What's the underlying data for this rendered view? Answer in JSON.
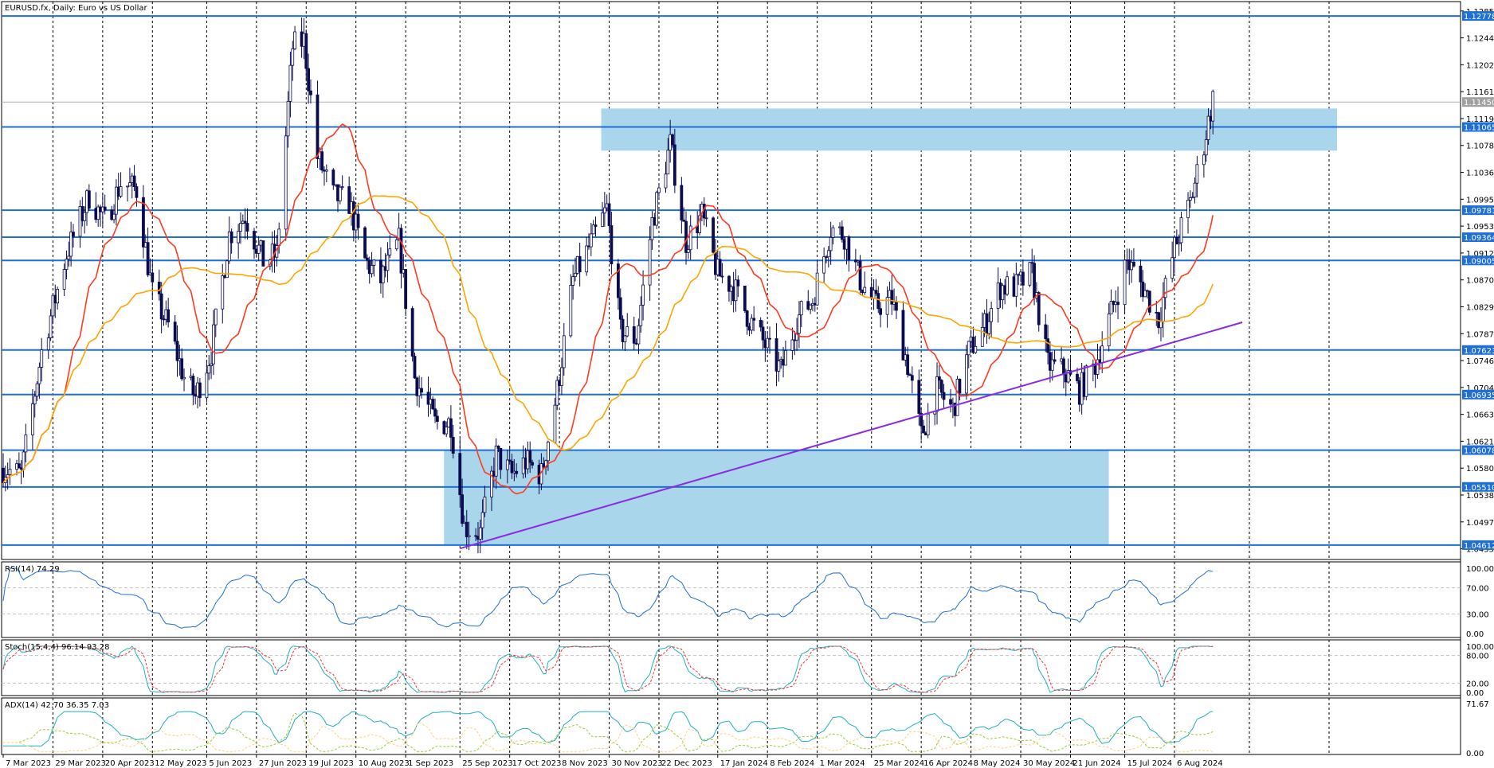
{
  "window": {
    "symbol_line": "EURUSD.fx, Daily:  Euro vs US Dollar"
  },
  "colors": {
    "candle_up": "#ffffff",
    "candle_down": "#0a0a50",
    "level_line": "#1e6fd9",
    "zone_fill": "#a9d6ea",
    "trendline": "#8a2be2",
    "ma_fast": "#ff3b1f",
    "ma_slow": "#ffa500",
    "rsi_line": "#1e6fd9",
    "stoch_main": "#20b0c0",
    "stoch_signal": "#ff3030",
    "adx_main": "#20b0c0",
    "adx_plus": "#9acd32",
    "adx_minus": "#ffd27f",
    "current_price_tag": "#a0a0a0"
  },
  "chart_data": [
    {
      "type": "candlestick",
      "title": "EURUSD.fx, Daily:  Euro vs US Dollar",
      "x_labels": [
        "7 Mar 2023",
        "29 Mar 2023",
        "20 Apr 2023",
        "12 May 2023",
        "5 Jun 2023",
        "27 Jun 2023",
        "19 Jul 2023",
        "10 Aug 2023",
        "1 Sep 2023",
        "25 Sep 2023",
        "17 Oct 2023",
        "8 Nov 2023",
        "30 Nov 2023",
        "22 Dec 2023",
        "17 Jan 2024",
        "8 Feb 2024",
        "1 Mar 2024",
        "25 Mar 2024",
        "16 Apr 2024",
        "8 May 2024",
        "30 May 2024",
        "21 Jun 2024",
        "15 Jul 2024",
        "6 Aug 2024"
      ],
      "y_ticks": [
        "1.12855",
        "1.12440",
        "1.12025",
        "1.11610",
        "1.11195",
        "1.10780",
        "1.10365",
        "1.09950",
        "1.09535",
        "1.09120",
        "1.08705",
        "1.08290",
        "1.07875",
        "1.07460",
        "1.07045",
        "1.06630",
        "1.06215",
        "1.05800",
        "1.05385",
        "1.04970",
        "1.04555"
      ],
      "ylim": [
        1.0439,
        1.13
      ],
      "levels": [
        "1.12778",
        "1.11065",
        "1.09781",
        "1.09364",
        "1.09005",
        "1.07623",
        "1.06935",
        "1.06078",
        "1.05510",
        "1.04612"
      ],
      "current_price": "1.11450",
      "resistance_zone": {
        "start": "30 Nov 2023",
        "end_offset_days": 15,
        "low": 1.107,
        "high": 1.1135
      },
      "support_zone": {
        "start": "25 Sep 2023",
        "end": "15 Jul 2024",
        "low": 1.0461,
        "high": 1.0608
      },
      "trendline": {
        "start_date": "25 Sep 2023",
        "start_price": 1.0456,
        "end_date": "5 Sep 2024",
        "end_price": 1.0805
      },
      "ohlc_close_path": [
        [
          "2023-03-07",
          1.058
        ],
        [
          "2023-03-15",
          1.057
        ],
        [
          "2023-03-24",
          1.076
        ],
        [
          "2023-04-04",
          1.091
        ],
        [
          "2023-04-14",
          1.1
        ],
        [
          "2023-04-21",
          1.096
        ],
        [
          "2023-04-28",
          1.102
        ],
        [
          "2023-05-05",
          1.101
        ],
        [
          "2023-05-12",
          1.085
        ],
        [
          "2023-05-19",
          1.08
        ],
        [
          "2023-05-26",
          1.072
        ],
        [
          "2023-05-31",
          1.069
        ],
        [
          "2023-06-07",
          1.076
        ],
        [
          "2023-06-15",
          1.094
        ],
        [
          "2023-06-22",
          1.097
        ],
        [
          "2023-06-30",
          1.09
        ],
        [
          "2023-07-06",
          1.091
        ],
        [
          "2023-07-13",
          1.123
        ],
        [
          "2023-07-18",
          1.124
        ],
        [
          "2023-07-24",
          1.106
        ],
        [
          "2023-07-31",
          1.1
        ],
        [
          "2023-08-07",
          1.099
        ],
        [
          "2023-08-14",
          1.09
        ],
        [
          "2023-08-21",
          1.087
        ],
        [
          "2023-08-29",
          1.093
        ],
        [
          "2023-09-05",
          1.072
        ],
        [
          "2023-09-14",
          1.065
        ],
        [
          "2023-09-21",
          1.065
        ],
        [
          "2023-09-27",
          1.049
        ],
        [
          "2023-10-04",
          1.048
        ],
        [
          "2023-10-11",
          1.06
        ],
        [
          "2023-10-18",
          1.057
        ],
        [
          "2023-10-24",
          1.059
        ],
        [
          "2023-10-31",
          1.057
        ],
        [
          "2023-11-07",
          1.07
        ],
        [
          "2023-11-14",
          1.087
        ],
        [
          "2023-11-21",
          1.092
        ],
        [
          "2023-11-29",
          1.098
        ],
        [
          "2023-12-05",
          1.079
        ],
        [
          "2023-12-12",
          1.078
        ],
        [
          "2023-12-19",
          1.096
        ],
        [
          "2023-12-27",
          1.108
        ],
        [
          "2024-01-03",
          1.093
        ],
        [
          "2024-01-10",
          1.097
        ],
        [
          "2024-01-17",
          1.088
        ],
        [
          "2024-01-24",
          1.086
        ],
        [
          "2024-01-31",
          1.081
        ],
        [
          "2024-02-07",
          1.077
        ],
        [
          "2024-02-14",
          1.073
        ],
        [
          "2024-02-21",
          1.081
        ],
        [
          "2024-02-28",
          1.084
        ],
        [
          "2024-03-07",
          1.095
        ],
        [
          "2024-03-13",
          1.094
        ],
        [
          "2024-03-20",
          1.087
        ],
        [
          "2024-03-27",
          1.083
        ],
        [
          "2024-04-03",
          1.084
        ],
        [
          "2024-04-10",
          1.074
        ],
        [
          "2024-04-16",
          1.063
        ],
        [
          "2024-04-23",
          1.07
        ],
        [
          "2024-04-30",
          1.067
        ],
        [
          "2024-05-07",
          1.076
        ],
        [
          "2024-05-14",
          1.08
        ],
        [
          "2024-05-21",
          1.086
        ],
        [
          "2024-05-28",
          1.086
        ],
        [
          "2024-06-04",
          1.088
        ],
        [
          "2024-06-11",
          1.074
        ],
        [
          "2024-06-18",
          1.073
        ],
        [
          "2024-06-25",
          1.07
        ],
        [
          "2024-07-02",
          1.074
        ],
        [
          "2024-07-09",
          1.082
        ],
        [
          "2024-07-16",
          1.09
        ],
        [
          "2024-07-23",
          1.086
        ],
        [
          "2024-07-30",
          1.081
        ],
        [
          "2024-08-06",
          1.092
        ],
        [
          "2024-08-13",
          1.099
        ],
        [
          "2024-08-19",
          1.108
        ],
        [
          "2024-08-23",
          1.115
        ]
      ]
    },
    {
      "type": "line",
      "name": "RSI(14) 74.29",
      "y_ticks": [
        "100.00",
        "70.00",
        "30.00",
        "0.00"
      ],
      "ylim": [
        0,
        100
      ]
    },
    {
      "type": "line",
      "name": "Stoch(15,4,4) 96.14 93.28",
      "y_ticks": [
        "100.00",
        "80.00",
        "20.00",
        "0.00"
      ],
      "ylim": [
        0,
        100
      ]
    },
    {
      "type": "line",
      "name": "ADX(14) 42.70 36.35 7.03",
      "y_ticks": [
        "71.67",
        "0.00"
      ],
      "ylim": [
        0,
        71.67
      ]
    }
  ]
}
